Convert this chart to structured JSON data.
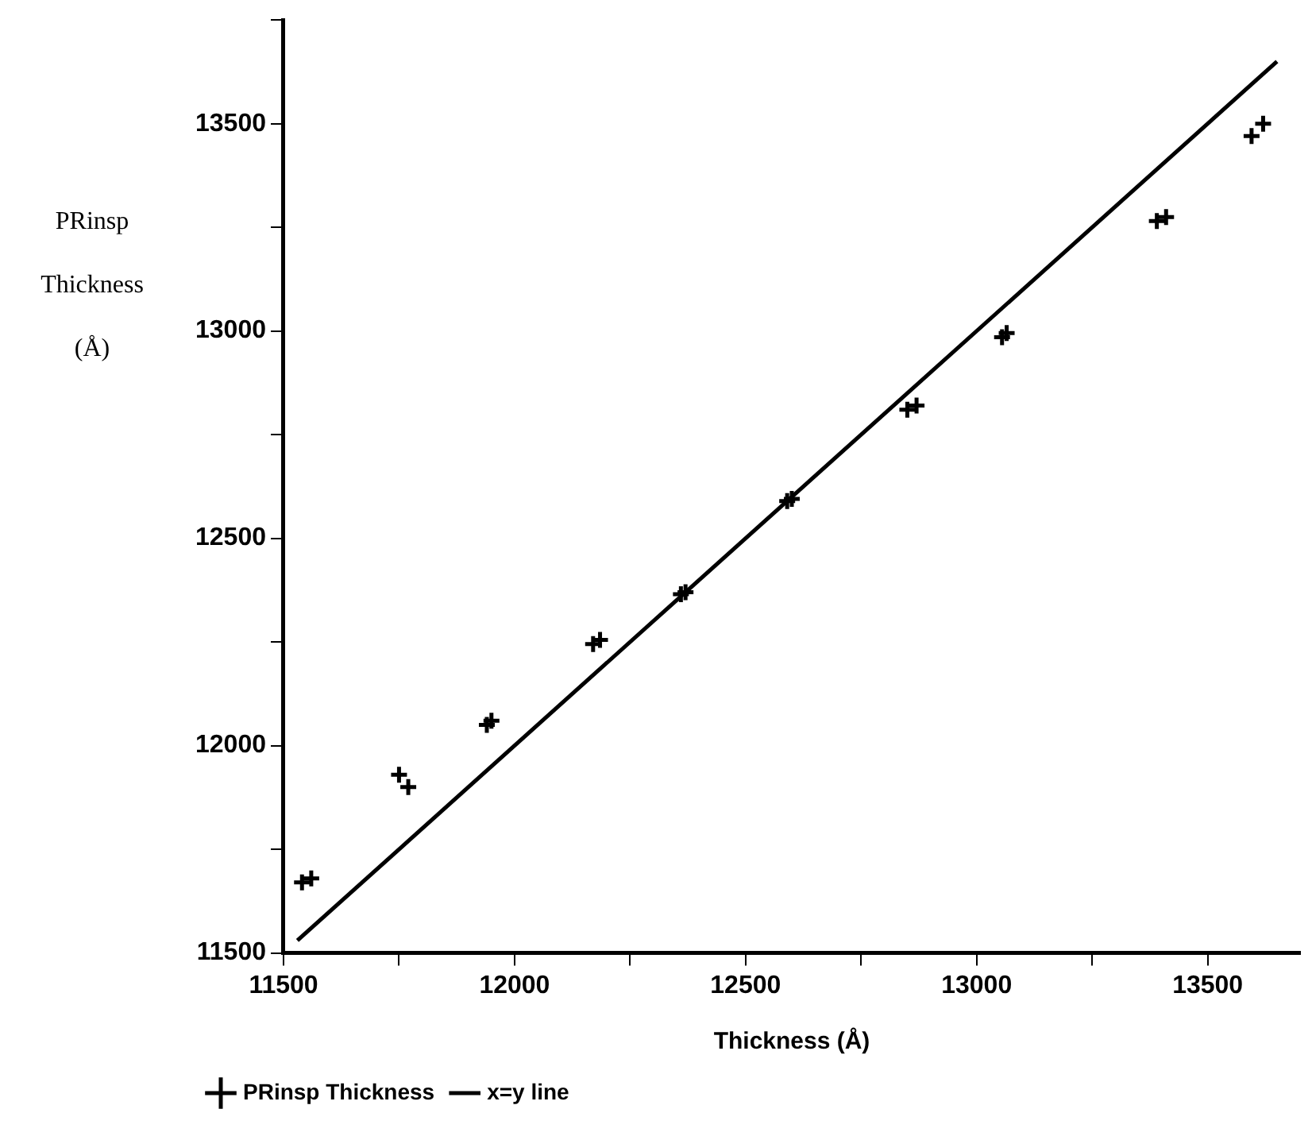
{
  "chart_data": {
    "type": "scatter",
    "xlabel": "Thickness (Å)",
    "ylabel": "PRinsp Thickness (Å)",
    "xlim": [
      11500,
      13700
    ],
    "ylim": [
      11500,
      13750
    ],
    "xticks": [
      11500,
      {
        "value": 11750,
        "label": null
      },
      12000,
      {
        "value": 12250,
        "label": null
      },
      12500,
      {
        "value": 12750,
        "label": null
      },
      13000,
      {
        "value": 13250,
        "label": null
      },
      13500
    ],
    "yticks": [
      11500,
      {
        "value": 11750,
        "label": null
      },
      12000,
      {
        "value": 12250,
        "label": null
      },
      12500,
      {
        "value": 12750,
        "label": null
      },
      13000,
      {
        "value": 13250,
        "label": null
      },
      13500,
      {
        "value": 13750,
        "label": null
      }
    ],
    "grid": false,
    "legend": "bottom left",
    "series": [
      {
        "name": "PRinsp Thickness",
        "color": "#000000",
        "marker": "cross",
        "x": [
          11540,
          11560,
          11750,
          11770,
          11940,
          11950,
          12170,
          12185,
          12360,
          12370,
          12590,
          12600,
          12850,
          12870,
          13055,
          13065,
          13390,
          13410,
          13595,
          13620
        ],
        "values": [
          11670,
          11680,
          11930,
          11900,
          12050,
          12060,
          12245,
          12255,
          12365,
          12370,
          12590,
          12595,
          12810,
          12820,
          12985,
          12995,
          13265,
          13275,
          13470,
          13500
        ]
      },
      {
        "name": "x=y line",
        "type": "line",
        "marker": "none",
        "color": "#000000",
        "x": [
          11530,
          13650
        ],
        "values": [
          11530,
          13650
        ]
      }
    ]
  }
}
